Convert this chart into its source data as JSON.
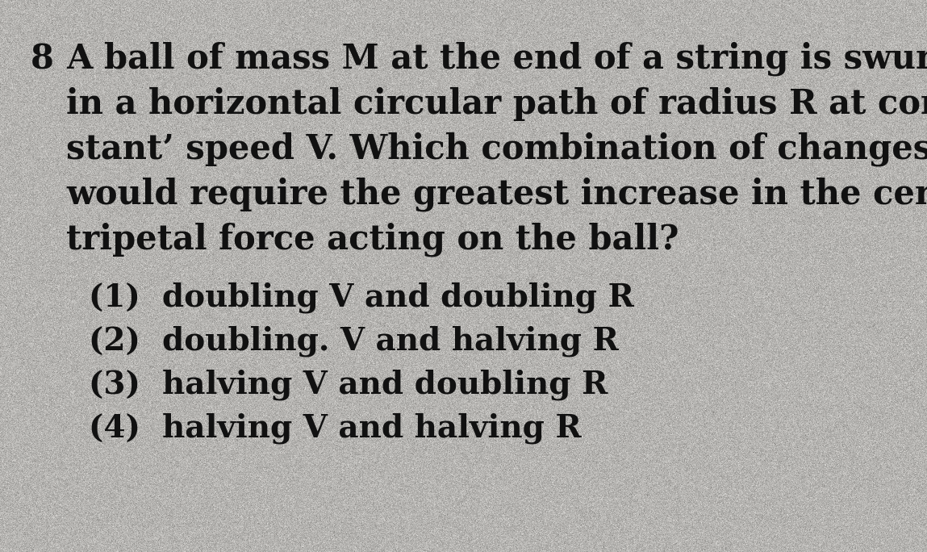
{
  "background_color": "#e8e5df",
  "text_color": "#111111",
  "question_number": "8",
  "question_lines": [
    "A ball of mass M at the end of a string is swung",
    "in a horizontal circular path of radius R at con-",
    "stant’ speed V. Which combination of changes",
    "would require the greatest increase in the cen-",
    "tripetal force acting on the ball?"
  ],
  "options": [
    "(1)  doubling V and doubling R",
    "(2)  doubling. V and halving R",
    "(3)  halving V and doubling R",
    "(4)  halving V and halving R"
  ],
  "font_size_question": 30,
  "font_size_options": 28,
  "font_family": "DejaVu Serif",
  "fig_width": 11.49,
  "fig_height": 6.84,
  "dpi": 100
}
